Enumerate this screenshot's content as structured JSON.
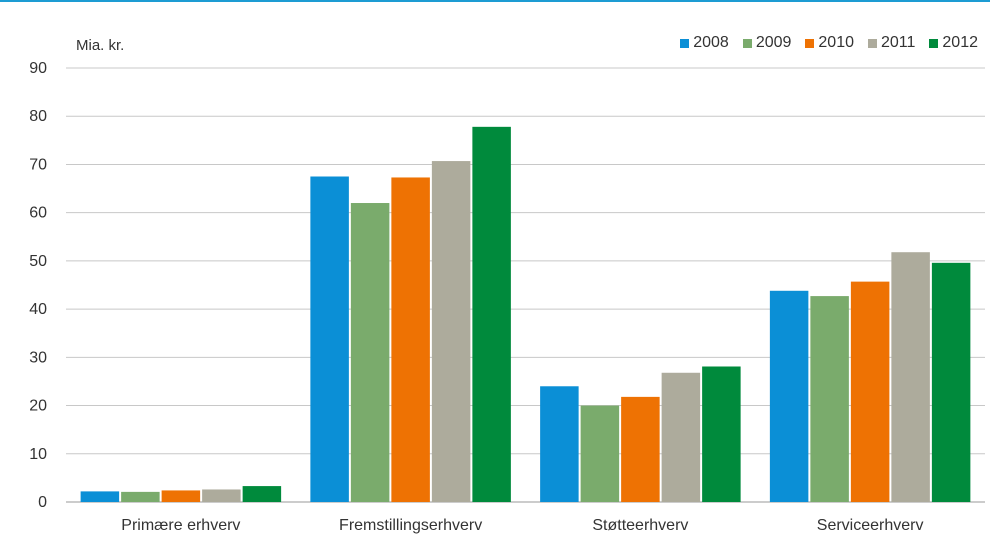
{
  "chart_data": {
    "type": "bar",
    "ylabel": "Mia. kr.",
    "ylim": [
      0,
      90
    ],
    "yticks": [
      0,
      10,
      20,
      30,
      40,
      50,
      60,
      70,
      80,
      90
    ],
    "grid": true,
    "legend_position": "top-right",
    "categories": [
      "Primære erhverv",
      "Fremstillingserhverv",
      "Støtteerhverv",
      "Serviceerhverv"
    ],
    "series": [
      {
        "name": "2008",
        "color": "#0b8fd6",
        "values": [
          2.2,
          67.5,
          24.0,
          43.8
        ]
      },
      {
        "name": "2009",
        "color": "#7aab6c",
        "values": [
          2.1,
          62.0,
          20.0,
          42.7
        ]
      },
      {
        "name": "2010",
        "color": "#ee7203",
        "values": [
          2.4,
          67.3,
          21.8,
          45.7
        ]
      },
      {
        "name": "2011",
        "color": "#adab9c",
        "values": [
          2.6,
          70.7,
          26.8,
          51.8
        ]
      },
      {
        "name": "2012",
        "color": "#008a3c",
        "values": [
          3.3,
          77.8,
          28.1,
          49.6
        ]
      }
    ]
  },
  "accent_color": "#1d9cd3"
}
